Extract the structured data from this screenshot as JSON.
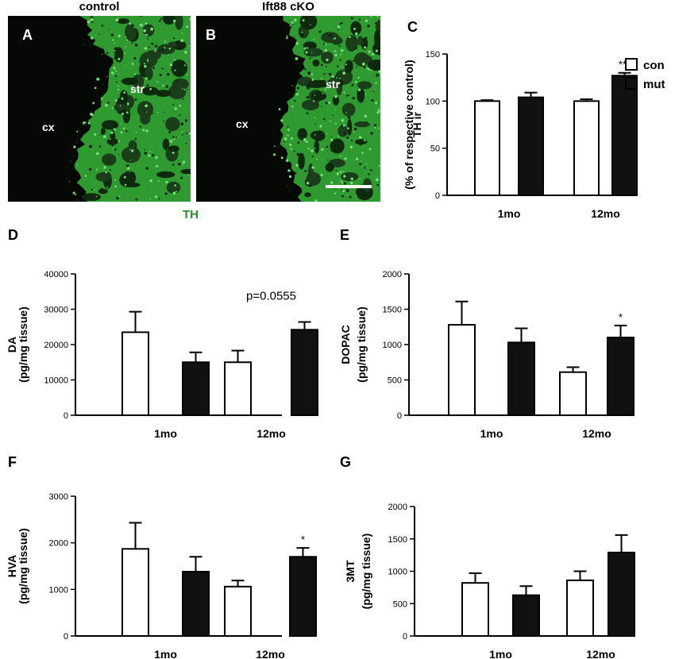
{
  "micrographs": {
    "stain": "TH",
    "stain_color": "#2e8b2e",
    "panels": [
      {
        "letter": "A",
        "title": "control",
        "label_cortex": "cx",
        "label_striatum": "str"
      },
      {
        "letter": "B",
        "title": "Ift88 cKO",
        "label_cortex": "cx",
        "label_striatum": "str"
      }
    ]
  },
  "legend": {
    "entries": [
      {
        "label": "con",
        "color": "#ffffff"
      },
      {
        "label": "mut",
        "color": "#111111"
      }
    ]
  },
  "chart_data": [
    {
      "panel": "C",
      "type": "bar",
      "categories": [
        "1mo",
        "12mo"
      ],
      "ylabel": [
        "TH ir",
        "(% of respective control)"
      ],
      "ylim": [
        0,
        150
      ],
      "yticks": [
        0,
        50,
        100,
        150
      ],
      "series": [
        {
          "name": "con",
          "values": [
            100,
            100
          ],
          "errors": [
            1,
            2
          ]
        },
        {
          "name": "mut",
          "values": [
            104,
            127
          ],
          "errors": [
            5,
            3
          ]
        }
      ],
      "annotations": [
        {
          "category": "12mo",
          "text": "***"
        }
      ]
    },
    {
      "panel": "D",
      "type": "bar",
      "categories": [
        "1mo",
        "12mo"
      ],
      "ylabel": [
        "DA",
        "(pg/mg tissue)"
      ],
      "ylim": [
        0,
        40000
      ],
      "yticks": [
        0,
        10000,
        20000,
        30000,
        40000
      ],
      "series": [
        {
          "name": "con",
          "values": [
            23500,
            15000
          ],
          "errors": [
            5800,
            3300
          ]
        },
        {
          "name": "mut",
          "values": [
            15000,
            24200
          ],
          "errors": [
            2800,
            2200
          ]
        }
      ],
      "annotations": [
        {
          "category": "12mo",
          "text": "p=0.0555"
        }
      ]
    },
    {
      "panel": "E",
      "type": "bar",
      "categories": [
        "1mo",
        "12mo"
      ],
      "ylabel": [
        "DOPAC",
        "(pg/mg tissue)"
      ],
      "ylim": [
        0,
        2000
      ],
      "yticks": [
        0,
        500,
        1000,
        1500,
        2000
      ],
      "series": [
        {
          "name": "con",
          "values": [
            1280,
            610
          ],
          "errors": [
            330,
            70
          ]
        },
        {
          "name": "mut",
          "values": [
            1030,
            1100
          ],
          "errors": [
            200,
            170
          ]
        }
      ],
      "annotations": [
        {
          "category": "12mo",
          "text": "*"
        }
      ]
    },
    {
      "panel": "F",
      "type": "bar",
      "categories": [
        "1mo",
        "12mo"
      ],
      "ylabel": [
        "HVA",
        "(pg/mg tissue)"
      ],
      "ylim": [
        0,
        3000
      ],
      "yticks": [
        0,
        1000,
        2000,
        3000
      ],
      "series": [
        {
          "name": "con",
          "values": [
            1870,
            1060
          ],
          "errors": [
            560,
            130
          ]
        },
        {
          "name": "mut",
          "values": [
            1380,
            1700
          ],
          "errors": [
            320,
            190
          ]
        }
      ],
      "annotations": [
        {
          "category": "12mo",
          "text": "*"
        }
      ]
    },
    {
      "panel": "G",
      "type": "bar",
      "categories": [
        "1mo",
        "12mo"
      ],
      "ylabel": [
        "3MT",
        "(pg/mg tissue)"
      ],
      "ylim": [
        0,
        2000
      ],
      "yticks": [
        0,
        500,
        1000,
        1500,
        2000
      ],
      "series": [
        {
          "name": "con",
          "values": [
            820,
            860
          ],
          "errors": [
            150,
            140
          ]
        },
        {
          "name": "mut",
          "values": [
            630,
            1290
          ],
          "errors": [
            140,
            270
          ]
        }
      ],
      "annotations": []
    }
  ]
}
